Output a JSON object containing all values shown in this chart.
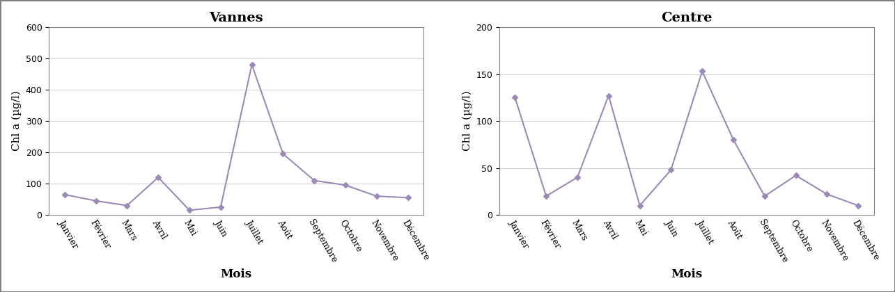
{
  "months": [
    "Janvier",
    "Février",
    "Mars",
    "Avril",
    "Mai",
    "Juin",
    "Juillet",
    "Août",
    "Septembre",
    "Octobre",
    "Novembre",
    "Décembre"
  ],
  "vannes_values": [
    65,
    45,
    30,
    120,
    15,
    25,
    480,
    195,
    110,
    95,
    60,
    55
  ],
  "centre_values": [
    125,
    20,
    40,
    127,
    10,
    48,
    153,
    80,
    20,
    42,
    22,
    10
  ],
  "title_left": "Vannes",
  "title_right": "Centre",
  "ylabel": "Chl a (µg/l)",
  "xlabel": "Mois",
  "ylim_left": [
    0,
    600
  ],
  "ylim_right": [
    0,
    200
  ],
  "yticks_left": [
    0,
    100,
    200,
    300,
    400,
    500,
    600
  ],
  "yticks_right": [
    0,
    50,
    100,
    150,
    200
  ],
  "line_color": "#9b8ab8",
  "marker": "D",
  "marker_size": 4,
  "line_width": 1.5,
  "title_fontsize": 14,
  "label_fontsize": 11,
  "tick_fontsize": 9,
  "xlabel_fontsize": 12,
  "figsize": [
    12.85,
    4.2
  ],
  "dpi": 100
}
